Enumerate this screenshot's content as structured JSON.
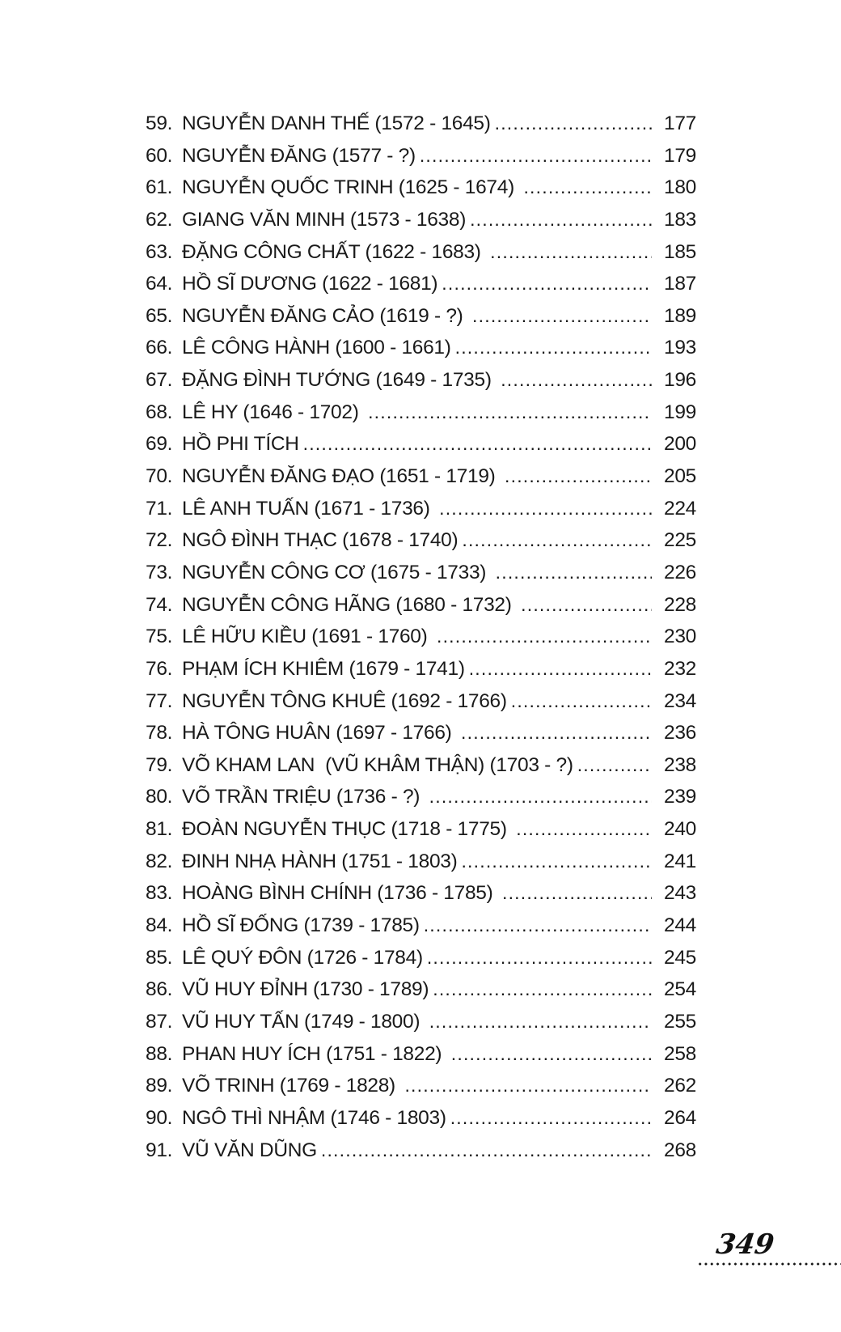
{
  "document": {
    "kind": "book-table-of-contents-page",
    "colors": {
      "background": "#ffffff",
      "text": "#1a1a1a"
    },
    "entries": [
      {
        "num": "59.",
        "title": "NGUYỄN DANH THẾ (1572 - 1645)",
        "page": "177"
      },
      {
        "num": "60.",
        "title": "NGUYỄN ĐĂNG (1577 - ?)",
        "page": "179"
      },
      {
        "num": "61.",
        "title": "NGUYỄN QUỐC TRINH (1625 - 1674) ",
        "page": "180"
      },
      {
        "num": "62.",
        "title": "GIANG VĂN MINH (1573 - 1638)",
        "page": "183"
      },
      {
        "num": "63.",
        "title": "ĐẶNG CÔNG CHẤT (1622 - 1683) ",
        "page": "185"
      },
      {
        "num": "64.",
        "title": "HỒ SĨ DƯƠNG (1622 - 1681)",
        "page": "187"
      },
      {
        "num": "65.",
        "title": "NGUYỄN ĐĂNG CẢO (1619 - ?) ",
        "page": "189"
      },
      {
        "num": "66.",
        "title": "LÊ CÔNG HÀNH (1600 - 1661)",
        "page": "193"
      },
      {
        "num": "67.",
        "title": "ĐẶNG ĐÌNH TƯỚNG (1649 - 1735) ",
        "page": "196"
      },
      {
        "num": "68.",
        "title": "LÊ HY (1646 - 1702) ",
        "page": "199"
      },
      {
        "num": "69.",
        "title": "HỒ PHI TÍCH",
        "page": "200"
      },
      {
        "num": "70.",
        "title": "NGUYỄN ĐĂNG ĐẠO (1651 - 1719) ",
        "page": "205"
      },
      {
        "num": "71.",
        "title": "LÊ ANH TUẤN (1671 - 1736) ",
        "page": "224"
      },
      {
        "num": "72.",
        "title": "NGÔ ĐÌNH THẠC (1678 - 1740)",
        "page": "225"
      },
      {
        "num": "73.",
        "title": "NGUYỄN CÔNG CƠ (1675 - 1733) ",
        "page": "226"
      },
      {
        "num": "74.",
        "title": "NGUYỄN CÔNG HÃNG (1680 - 1732) ",
        "page": "228"
      },
      {
        "num": "75.",
        "title": "LÊ HỮU KIỀU (1691 - 1760) ",
        "page": "230"
      },
      {
        "num": "76.",
        "title": "PHẠM ÍCH KHIÊM (1679 - 1741)",
        "page": "232"
      },
      {
        "num": "77.",
        "title": "NGUYỄN TÔNG KHUÊ (1692 - 1766)",
        "page": "234"
      },
      {
        "num": "78.",
        "title": "HÀ TÔNG HUÂN (1697 - 1766) ",
        "page": "236"
      },
      {
        "num": "79.",
        "title": "VÕ KHAM LAN  (VŨ KHÂM THẬN) (1703 - ?)",
        "page": "238"
      },
      {
        "num": "80.",
        "title": "VÕ TRẦN TRIỆU (1736 - ?) ",
        "page": "239"
      },
      {
        "num": "81.",
        "title": "ĐOÀN NGUYỄN THỤC (1718 - 1775) ",
        "page": "240"
      },
      {
        "num": "82.",
        "title": "ĐINH NHẠ HÀNH (1751 - 1803)",
        "page": "241"
      },
      {
        "num": "83.",
        "title": "HOÀNG BÌNH CHÍNH (1736 - 1785) ",
        "page": "243"
      },
      {
        "num": "84.",
        "title": "HỒ SĨ ĐỐNG (1739 - 1785)",
        "page": "244"
      },
      {
        "num": "85.",
        "title": "LÊ QUÝ ĐÔN (1726 - 1784)",
        "page": "245"
      },
      {
        "num": "86.",
        "title": "VŨ HUY ĐỈNH (1730 - 1789)",
        "page": "254"
      },
      {
        "num": "87.",
        "title": "VŨ HUY TẤN (1749 - 1800) ",
        "page": "255"
      },
      {
        "num": "88.",
        "title": "PHAN HUY ÍCH (1751 - 1822) ",
        "page": "258"
      },
      {
        "num": "89.",
        "title": "VÕ TRINH (1769 - 1828) ",
        "page": "262"
      },
      {
        "num": "90.",
        "title": "NGÔ THÌ NHẬM (1746 - 1803)",
        "page": "264"
      },
      {
        "num": "91.",
        "title": "VŨ VĂN DŨNG",
        "page": "268"
      }
    ],
    "footer": {
      "page_number": "349"
    }
  }
}
